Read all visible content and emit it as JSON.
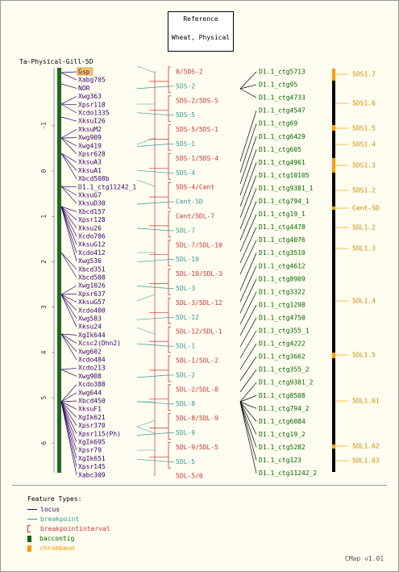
{
  "title": {
    "line1": "Reference",
    "line2": "Wheat, Physical"
  },
  "map_name": "Ta-Physical-Gill-5D",
  "scale_labels": [
    "-1",
    "0",
    "1",
    "2",
    "3",
    "4",
    "5",
    "6",
    "7"
  ],
  "scale_values": [
    -1,
    0,
    1,
    2,
    3,
    4,
    5,
    6,
    7
  ],
  "highlighted_locus": "Gsp",
  "loci": [
    "Gsp",
    "Xabg705",
    "NOR",
    "Xwg363",
    "Xpsr118",
    "Xcdo1335",
    "XksuI26",
    "XksuM2",
    "Xwg909",
    "Xwg419",
    "Xpsr628",
    "XksuA3",
    "XksuA1",
    "Xbcd508b",
    "D1.1_ctg11242_1",
    "XksuG7",
    "XksuD30",
    "Xbcd157",
    "Xpsr128",
    "Xksu26",
    "Xcdo786",
    "XksuG12",
    "Xcdo412",
    "Xwg536",
    "Xbcd351",
    "Xbcd508",
    "Xwg1026",
    "Xpsr637",
    "XksuG57",
    "Xcdo400",
    "Xwg583",
    "Xksu24",
    "XgIk644",
    "Xcsc2(Dhn2)",
    "Xwg602",
    "Xcdo484",
    "Xcdo213",
    "Xwg908",
    "Xcdo388",
    "Xwg644",
    "Xbcd450",
    "XksuF1",
    "XgIk621",
    "Xpsr370",
    "Xpsr115(Ph)",
    "XgIk695",
    "Xpsr79",
    "XgIk651",
    "Xpsr145",
    "Xabc309"
  ],
  "breakpoints": [
    {
      "label": "0/5DS-2",
      "kind": "interval"
    },
    {
      "label": "5DS-2",
      "kind": "point"
    },
    {
      "label": "5DS-2/5DS-5",
      "kind": "interval"
    },
    {
      "label": "5DS-5",
      "kind": "point"
    },
    {
      "label": "5DS-5/5DS-1",
      "kind": "interval"
    },
    {
      "label": "5DS-1",
      "kind": "point"
    },
    {
      "label": "5DS-1/5DS-4",
      "kind": "interval"
    },
    {
      "label": "5DS-4",
      "kind": "point"
    },
    {
      "label": "5DS-4/Cent",
      "kind": "interval"
    },
    {
      "label": "Cent-5D",
      "kind": "point"
    },
    {
      "label": "Cent/5DL-7",
      "kind": "interval"
    },
    {
      "label": "5DL-7",
      "kind": "point"
    },
    {
      "label": "5DL-7/5DL-10",
      "kind": "interval"
    },
    {
      "label": "5DL-10",
      "kind": "point"
    },
    {
      "label": "5DL-10/5DL-3",
      "kind": "interval"
    },
    {
      "label": "5DL-3",
      "kind": "point"
    },
    {
      "label": "5DL-3/5DL-12",
      "kind": "interval"
    },
    {
      "label": "5DL-12",
      "kind": "point"
    },
    {
      "label": "5DL-12/5DL-1",
      "kind": "interval"
    },
    {
      "label": "5DL-1",
      "kind": "point"
    },
    {
      "label": "5DL-1/5DL-2",
      "kind": "interval"
    },
    {
      "label": "5DL-2",
      "kind": "point"
    },
    {
      "label": "5DL-2/5DL-8",
      "kind": "interval"
    },
    {
      "label": "5DL-8",
      "kind": "point"
    },
    {
      "label": "5DL-8/5DL-9",
      "kind": "interval"
    },
    {
      "label": "5DL-9",
      "kind": "point"
    },
    {
      "label": "5DL-9/5DL-5",
      "kind": "interval"
    },
    {
      "label": "5DL-5",
      "kind": "point"
    },
    {
      "label": "5DL-5/0",
      "kind": "interval"
    }
  ],
  "contigs": [
    "D1.1_ctg5713",
    "D1.1_ctg95",
    "D1.1_ctg4733",
    "D1.1_ctg4547",
    "D1.1_ctg69",
    "D1.1_ctg6429",
    "D1.1_ctg605",
    "D1.1_ctg4961",
    "D1.1_ctg10105",
    "D1.1_ctg9381_1",
    "D1.1_ctg794_1",
    "D1.1_ctg19_1",
    "D1.1_ctg4478",
    "D1.1_ctg4076",
    "D1.1_ctg3510",
    "D1.1_ctg4612",
    "D1.1_ctg8909",
    "D1.1_ctg3322",
    "D1.1_ctg1298",
    "D1.1_ctg4750",
    "D1.1_ctg355_1",
    "D1.1_ctg4222",
    "D1.1_ctg3662",
    "D1.1_ctg355_2",
    "D1.1_ctg9381_2",
    "D1.1_ctg8508",
    "D1.1_ctg794_2",
    "D1.1_ctg6084",
    "D1.1_ctg19_2",
    "D1.1_ctg5282",
    "D1.1_ctg123",
    "D1.1_ctg11242_2"
  ],
  "chromband_labels": [
    "5DS1.7",
    "5DS1.6",
    "5DS1.5",
    "5DS1.4",
    "5DS1.3",
    "5DS1.2",
    "Cent-5D",
    "5DL1.2",
    "5DL1.3",
    "5DL1.4",
    "5DL1.5",
    "5DL1.61",
    "5DL1.62",
    "5DL1.63"
  ],
  "legend": {
    "title": "Feature Types:",
    "items": [
      {
        "label": "locus",
        "color": "#330066",
        "kind": "line"
      },
      {
        "label": "breakpoint",
        "color": "#339999",
        "kind": "line"
      },
      {
        "label": "breakpointinterval",
        "color": "#cc3333",
        "kind": "bracket"
      },
      {
        "label": "baccontig",
        "color": "#006600",
        "kind": "block"
      },
      {
        "label": "chromband",
        "color": "#ff9900",
        "kind": "block"
      }
    ]
  },
  "version": "CMap v1.01",
  "colors": {
    "locus": "#330066",
    "breakpoint": "#339999",
    "interval": "#cc3333",
    "contig_bar": "#1e6b1e",
    "contig_text": "#006600",
    "chromband": "#ff9900",
    "chromband_text": "#cc8800",
    "highlight_bg": "#ffcc66"
  }
}
